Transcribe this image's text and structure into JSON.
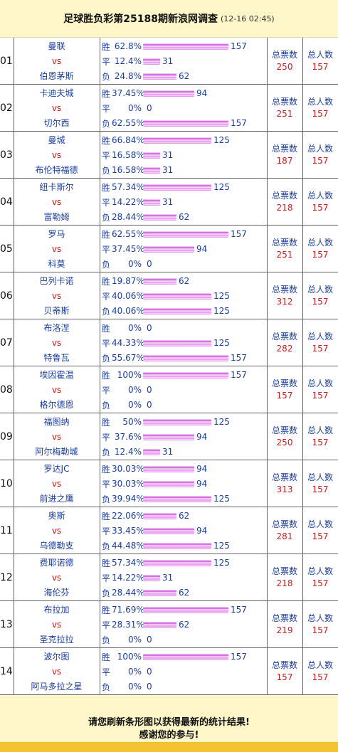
{
  "header": {
    "title": "足球胜负彩第25188期新浪网调查",
    "time": "(12-16 02:45)"
  },
  "labels": {
    "win": "胜",
    "draw": "平",
    "lose": "负",
    "vs": "vs",
    "total_votes": "总票数",
    "total_people": "总人数"
  },
  "matches": [
    {
      "no": "01",
      "home": "曼联",
      "away": "伯恩茅斯",
      "win_pct": "62.8%",
      "draw_pct": "12.4%",
      "lose_pct": "24.8%",
      "win_cnt": "157",
      "draw_cnt": "31",
      "lose_cnt": "62",
      "total": "250",
      "people": "157"
    },
    {
      "no": "02",
      "home": "卡迪夫城",
      "away": "切尔西",
      "win_pct": "37.45%",
      "draw_pct": "0%",
      "lose_pct": "62.55%",
      "win_cnt": "94",
      "draw_cnt": "0",
      "lose_cnt": "157",
      "total": "251",
      "people": "157"
    },
    {
      "no": "03",
      "home": "曼城",
      "away": "布伦特福德",
      "win_pct": "66.84%",
      "draw_pct": "16.58%",
      "lose_pct": "16.58%",
      "win_cnt": "125",
      "draw_cnt": "31",
      "lose_cnt": "31",
      "total": "187",
      "people": "157"
    },
    {
      "no": "04",
      "home": "纽卡斯尔",
      "away": "富勒姆",
      "win_pct": "57.34%",
      "draw_pct": "14.22%",
      "lose_pct": "28.44%",
      "win_cnt": "125",
      "draw_cnt": "31",
      "lose_cnt": "62",
      "total": "218",
      "people": "157"
    },
    {
      "no": "05",
      "home": "罗马",
      "away": "科莫",
      "win_pct": "62.55%",
      "draw_pct": "37.45%",
      "lose_pct": "0%",
      "win_cnt": "157",
      "draw_cnt": "94",
      "lose_cnt": "0",
      "total": "251",
      "people": "157"
    },
    {
      "no": "06",
      "home": "巴列卡诺",
      "away": "贝蒂斯",
      "win_pct": "19.87%",
      "draw_pct": "40.06%",
      "lose_pct": "40.06%",
      "win_cnt": "62",
      "draw_cnt": "125",
      "lose_cnt": "125",
      "total": "312",
      "people": "157"
    },
    {
      "no": "07",
      "home": "布洛涅",
      "away": "特鲁瓦",
      "win_pct": "0%",
      "draw_pct": "44.33%",
      "lose_pct": "55.67%",
      "win_cnt": "0",
      "draw_cnt": "125",
      "lose_cnt": "157",
      "total": "282",
      "people": "157"
    },
    {
      "no": "08",
      "home": "埃因霍温",
      "away": "格尔德恩",
      "win_pct": "100%",
      "draw_pct": "0%",
      "lose_pct": "0%",
      "win_cnt": "157",
      "draw_cnt": "0",
      "lose_cnt": "0",
      "total": "157",
      "people": "157"
    },
    {
      "no": "09",
      "home": "福图纳",
      "away": "阿尔梅勒城",
      "win_pct": "50%",
      "draw_pct": "37.6%",
      "lose_pct": "12.4%",
      "win_cnt": "125",
      "draw_cnt": "94",
      "lose_cnt": "31",
      "total": "250",
      "people": "157"
    },
    {
      "no": "10",
      "home": "罗达JC",
      "away": "前进之鹰",
      "win_pct": "30.03%",
      "draw_pct": "30.03%",
      "lose_pct": "39.94%",
      "win_cnt": "94",
      "draw_cnt": "94",
      "lose_cnt": "125",
      "total": "313",
      "people": "157"
    },
    {
      "no": "11",
      "home": "奥斯",
      "away": "乌德勒支",
      "win_pct": "22.06%",
      "draw_pct": "33.45%",
      "lose_pct": "44.48%",
      "win_cnt": "62",
      "draw_cnt": "94",
      "lose_cnt": "125",
      "total": "281",
      "people": "157"
    },
    {
      "no": "12",
      "home": "费耶诺德",
      "away": "海伦芬",
      "win_pct": "57.34%",
      "draw_pct": "14.22%",
      "lose_pct": "28.44%",
      "win_cnt": "125",
      "draw_cnt": "31",
      "lose_cnt": "62",
      "total": "218",
      "people": "157"
    },
    {
      "no": "13",
      "home": "布拉加",
      "away": "圣克拉拉",
      "win_pct": "71.69%",
      "draw_pct": "28.31%",
      "lose_pct": "0%",
      "win_cnt": "157",
      "draw_cnt": "62",
      "lose_cnt": "0",
      "total": "219",
      "people": "157"
    },
    {
      "no": "14",
      "home": "波尔图",
      "away": "阿马多拉之星",
      "win_pct": "100%",
      "draw_pct": "0%",
      "lose_pct": "0%",
      "win_cnt": "157",
      "draw_cnt": "0",
      "lose_cnt": "0",
      "total": "157",
      "people": "157"
    }
  ],
  "footer": {
    "line1": "请您刷新条形图以获得最新的统计结果!",
    "line2": "感谢您的参与!"
  }
}
